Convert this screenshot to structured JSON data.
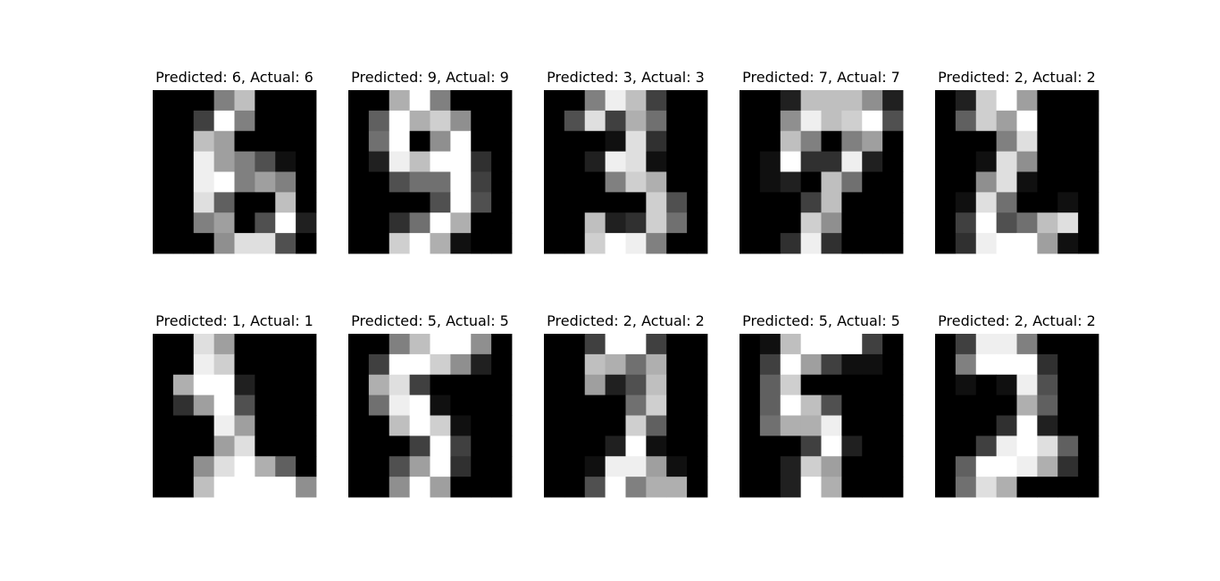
{
  "chart_data": {
    "type": "heatmap",
    "colormap": "gray",
    "value_range": [
      0,
      16
    ],
    "layout": "2 rows x 5 columns",
    "axes_visible": false,
    "panels": [
      {
        "title": "Predicted: 6, Actual: 6",
        "pixels": [
          [
            0,
            0,
            0,
            8,
            12,
            0,
            0,
            0
          ],
          [
            0,
            0,
            4,
            16,
            8,
            0,
            0,
            0
          ],
          [
            0,
            0,
            12,
            10,
            0,
            0,
            0,
            0
          ],
          [
            0,
            0,
            15,
            10,
            8,
            5,
            1,
            0
          ],
          [
            0,
            0,
            15,
            16,
            8,
            10,
            8,
            0
          ],
          [
            0,
            0,
            14,
            6,
            0,
            0,
            12,
            0
          ],
          [
            0,
            0,
            8,
            10,
            0,
            5,
            16,
            2
          ],
          [
            0,
            0,
            0,
            9,
            14,
            14,
            5,
            0
          ]
        ]
      },
      {
        "title": "Predicted: 9, Actual: 9",
        "pixels": [
          [
            0,
            0,
            11,
            16,
            8,
            0,
            0,
            0
          ],
          [
            0,
            6,
            16,
            11,
            13,
            9,
            0,
            0
          ],
          [
            0,
            7,
            16,
            0,
            9,
            16,
            0,
            0
          ],
          [
            0,
            2,
            15,
            12,
            16,
            16,
            3,
            0
          ],
          [
            0,
            0,
            5,
            7,
            7,
            16,
            4,
            0
          ],
          [
            0,
            0,
            0,
            0,
            5,
            16,
            5,
            0
          ],
          [
            0,
            0,
            3,
            7,
            16,
            11,
            0,
            0
          ],
          [
            0,
            0,
            13,
            16,
            11,
            1,
            0,
            0
          ]
        ]
      },
      {
        "title": "Predicted: 3, Actual: 3",
        "pixels": [
          [
            0,
            0,
            8,
            15,
            12,
            4,
            0,
            0
          ],
          [
            0,
            5,
            14,
            4,
            11,
            7,
            0,
            0
          ],
          [
            0,
            0,
            0,
            1,
            14,
            3,
            0,
            0
          ],
          [
            0,
            0,
            2,
            15,
            14,
            1,
            0,
            0
          ],
          [
            0,
            0,
            0,
            8,
            13,
            11,
            0,
            0
          ],
          [
            0,
            0,
            0,
            0,
            0,
            13,
            5,
            0
          ],
          [
            0,
            0,
            12,
            2,
            3,
            13,
            7,
            0
          ],
          [
            0,
            0,
            13,
            16,
            15,
            8,
            0,
            0
          ]
        ]
      },
      {
        "title": "Predicted: 7, Actual: 7",
        "pixels": [
          [
            0,
            0,
            2,
            12,
            12,
            12,
            9,
            2
          ],
          [
            0,
            0,
            9,
            15,
            12,
            13,
            16,
            5
          ],
          [
            0,
            0,
            12,
            8,
            0,
            8,
            10,
            0
          ],
          [
            0,
            1,
            16,
            3,
            3,
            15,
            2,
            0
          ],
          [
            0,
            1,
            2,
            0,
            12,
            7,
            0,
            0
          ],
          [
            0,
            0,
            0,
            4,
            12,
            0,
            0,
            0
          ],
          [
            0,
            0,
            0,
            13,
            9,
            0,
            0,
            0
          ],
          [
            0,
            0,
            3,
            15,
            3,
            0,
            0,
            0
          ]
        ]
      },
      {
        "title": "Predicted: 2, Actual: 2",
        "pixels": [
          [
            0,
            2,
            13,
            16,
            10,
            0,
            0,
            0
          ],
          [
            0,
            6,
            13,
            10,
            16,
            0,
            0,
            0
          ],
          [
            0,
            0,
            0,
            8,
            14,
            0,
            0,
            0
          ],
          [
            0,
            0,
            1,
            14,
            9,
            0,
            0,
            0
          ],
          [
            0,
            0,
            9,
            14,
            1,
            0,
            0,
            0
          ],
          [
            0,
            1,
            14,
            7,
            0,
            0,
            1,
            0
          ],
          [
            0,
            4,
            16,
            5,
            7,
            12,
            14,
            0
          ],
          [
            0,
            3,
            15,
            16,
            16,
            10,
            1,
            0
          ]
        ]
      },
      {
        "title": "Predicted: 1, Actual: 1",
        "pixels": [
          [
            0,
            0,
            14,
            10,
            0,
            0,
            0,
            0
          ],
          [
            0,
            0,
            15,
            13,
            0,
            0,
            0,
            0
          ],
          [
            0,
            11,
            16,
            16,
            2,
            0,
            0,
            0
          ],
          [
            0,
            3,
            10,
            16,
            5,
            0,
            0,
            0
          ],
          [
            0,
            0,
            0,
            15,
            10,
            0,
            0,
            0
          ],
          [
            0,
            0,
            0,
            10,
            14,
            0,
            0,
            0
          ],
          [
            0,
            0,
            9,
            14,
            16,
            11,
            6,
            0
          ],
          [
            0,
            0,
            12,
            16,
            16,
            16,
            16,
            9
          ]
        ]
      },
      {
        "title": "Predicted: 5, Actual: 5",
        "pixels": [
          [
            0,
            0,
            8,
            12,
            16,
            16,
            9,
            0
          ],
          [
            0,
            4,
            16,
            16,
            13,
            9,
            2,
            0
          ],
          [
            0,
            11,
            14,
            4,
            0,
            0,
            0,
            0
          ],
          [
            0,
            7,
            15,
            16,
            1,
            0,
            0,
            0
          ],
          [
            0,
            0,
            12,
            16,
            13,
            1,
            0,
            0
          ],
          [
            0,
            0,
            0,
            4,
            16,
            4,
            0,
            0
          ],
          [
            0,
            0,
            5,
            10,
            16,
            3,
            0,
            0
          ],
          [
            0,
            0,
            9,
            16,
            10,
            0,
            0,
            0
          ]
        ]
      },
      {
        "title": "Predicted: 2, Actual: 2",
        "pixels": [
          [
            0,
            0,
            4,
            16,
            16,
            4,
            0,
            0
          ],
          [
            0,
            0,
            12,
            11,
            7,
            11,
            0,
            0
          ],
          [
            0,
            0,
            10,
            2,
            5,
            12,
            0,
            0
          ],
          [
            0,
            0,
            0,
            0,
            7,
            13,
            0,
            0
          ],
          [
            0,
            0,
            0,
            0,
            13,
            6,
            0,
            0
          ],
          [
            0,
            0,
            0,
            2,
            16,
            1,
            0,
            0
          ],
          [
            0,
            0,
            1,
            15,
            15,
            10,
            1,
            0
          ],
          [
            0,
            0,
            5,
            16,
            8,
            11,
            11,
            0
          ]
        ]
      },
      {
        "title": "Predicted: 5, Actual: 5",
        "pixels": [
          [
            0,
            1,
            12,
            16,
            16,
            16,
            4,
            0
          ],
          [
            0,
            4,
            16,
            10,
            4,
            1,
            1,
            0
          ],
          [
            0,
            6,
            13,
            0,
            0,
            0,
            0,
            0
          ],
          [
            0,
            6,
            16,
            12,
            5,
            0,
            0,
            0
          ],
          [
            0,
            7,
            11,
            11,
            15,
            0,
            0,
            0
          ],
          [
            0,
            0,
            0,
            4,
            16,
            2,
            0,
            0
          ],
          [
            0,
            0,
            2,
            13,
            10,
            0,
            0,
            0
          ],
          [
            0,
            0,
            2,
            16,
            11,
            0,
            0,
            0
          ]
        ]
      },
      {
        "title": "Predicted: 2, Actual: 2",
        "pixels": [
          [
            0,
            4,
            15,
            15,
            8,
            0,
            0,
            0
          ],
          [
            0,
            8,
            16,
            16,
            16,
            3,
            0,
            0
          ],
          [
            0,
            1,
            0,
            1,
            15,
            5,
            0,
            0
          ],
          [
            0,
            0,
            0,
            0,
            11,
            6,
            0,
            0
          ],
          [
            0,
            0,
            0,
            3,
            16,
            2,
            0,
            0
          ],
          [
            0,
            0,
            4,
            15,
            16,
            14,
            6,
            0
          ],
          [
            0,
            6,
            16,
            16,
            15,
            11,
            3,
            0
          ],
          [
            0,
            7,
            14,
            11,
            0,
            0,
            0,
            0
          ]
        ]
      }
    ]
  }
}
